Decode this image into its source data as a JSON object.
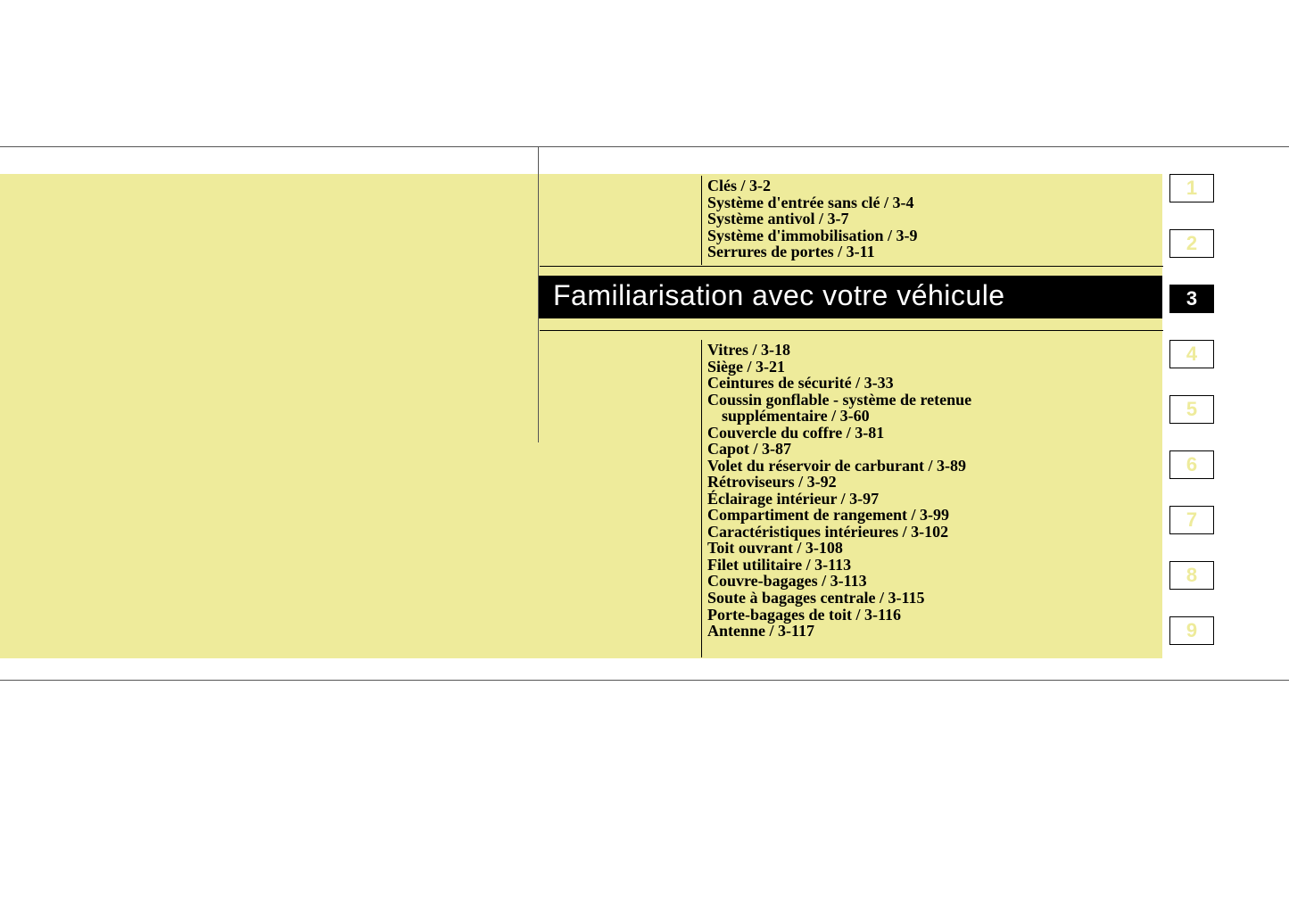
{
  "colors": {
    "page_bg": "#ffffff",
    "panel_bg": "#eeeb9b",
    "rule": "#555555",
    "text": "#000000",
    "title_bg": "#000000",
    "title_text": "#ffffff",
    "tab_inactive_text": "#eeeb9b",
    "tab_active_bg": "#000000",
    "tab_active_text": "#ffffff"
  },
  "title": "Familiarisation avec votre véhicule",
  "toc_top": [
    "Clés / 3-2",
    "Système d'entrée sans clé / 3-4",
    "Système antivol / 3-7",
    "Système d'immobilisation / 3-9",
    "Serrures de portes / 3-11"
  ],
  "toc_bottom": [
    "Vitres / 3-18",
    "Siège / 3-21",
    "Ceintures de sécurité / 3-33",
    "Coussin gonflable - système de retenue",
    {
      "indent": "supplémentaire / 3-60"
    },
    "Couvercle du coffre / 3-81",
    "Capot / 3-87",
    "Volet du réservoir de carburant / 3-89",
    "Rétroviseurs / 3-92",
    "Éclairage intérieur / 3-97",
    "Compartiment de rangement / 3-99",
    "Caractéristiques intérieures / 3-102",
    "Toit ouvrant / 3-108",
    "Filet utilitaire / 3-113",
    "Couvre-bagages / 3-113",
    "Soute à bagages centrale / 3-115",
    "Porte-bagages de toit / 3-116",
    "Antenne / 3-117"
  ],
  "tabs": [
    {
      "n": "1",
      "active": false
    },
    {
      "n": "2",
      "active": false
    },
    {
      "n": "3",
      "active": true
    },
    {
      "n": "4",
      "active": false
    },
    {
      "n": "5",
      "active": false
    },
    {
      "n": "6",
      "active": false
    },
    {
      "n": "7",
      "active": false
    },
    {
      "n": "8",
      "active": false
    },
    {
      "n": "9",
      "active": false
    }
  ]
}
